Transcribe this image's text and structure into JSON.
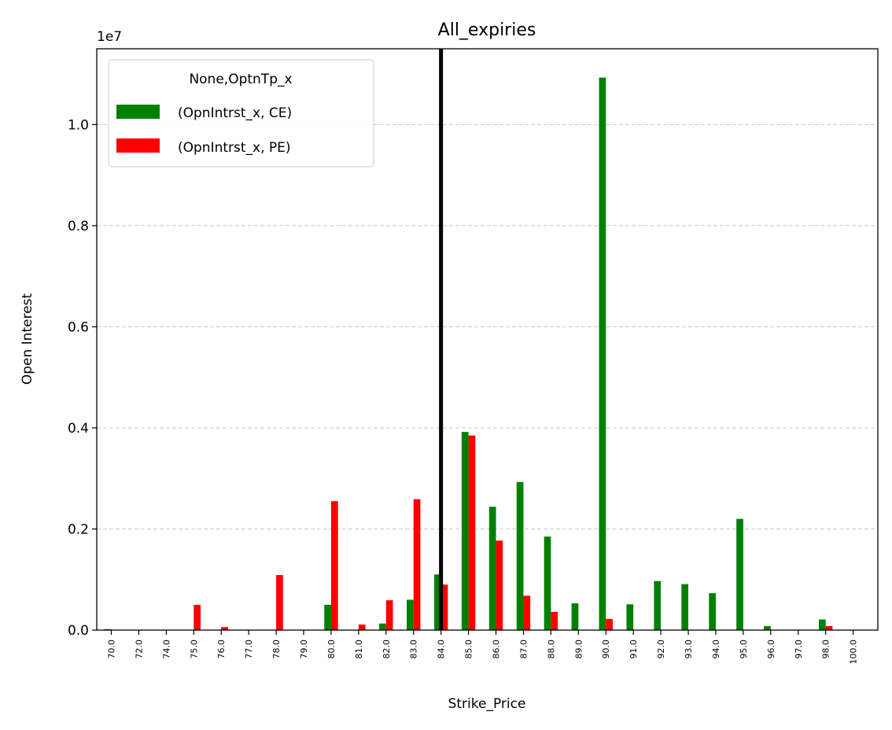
{
  "chart_data": {
    "type": "bar",
    "title": "All_expiries",
    "xlabel": "Strike_Price",
    "ylabel": "Open Interest",
    "y_offset_label": "1e7",
    "ylim": [
      0,
      11500000
    ],
    "yticks": [
      0,
      2000000,
      4000000,
      6000000,
      8000000,
      10000000
    ],
    "ytick_labels": [
      "0.0",
      "0.2",
      "0.4",
      "0.6",
      "0.8",
      "1.0"
    ],
    "grid": "y, dashed",
    "legend_title": "None,OptnTp_x",
    "legend_position": "top-left",
    "categories": [
      "70.0",
      "72.0",
      "74.0",
      "75.0",
      "76.0",
      "77.0",
      "78.0",
      "79.0",
      "80.0",
      "81.0",
      "82.0",
      "83.0",
      "84.0",
      "85.0",
      "86.0",
      "87.0",
      "88.0",
      "89.0",
      "90.0",
      "91.0",
      "92.0",
      "93.0",
      "94.0",
      "95.0",
      "96.0",
      "97.0",
      "98.0",
      "100.0"
    ],
    "series": [
      {
        "name": "(OpnIntrst_x, CE)",
        "color": "#008000",
        "values": [
          20000,
          0,
          0,
          0,
          0,
          0,
          0,
          0,
          500000,
          0,
          130000,
          600000,
          1100000,
          3920000,
          2440000,
          2930000,
          1850000,
          530000,
          10930000,
          510000,
          970000,
          910000,
          730000,
          2200000,
          80000,
          0,
          210000,
          0
        ]
      },
      {
        "name": "(OpnIntrst_x, PE)",
        "color": "#ff0000",
        "values": [
          0,
          0,
          0,
          500000,
          60000,
          0,
          1090000,
          0,
          2550000,
          110000,
          590000,
          2590000,
          900000,
          3850000,
          1770000,
          680000,
          360000,
          0,
          220000,
          0,
          0,
          0,
          0,
          0,
          0,
          0,
          80000,
          0
        ]
      }
    ],
    "vline_category": "84.0",
    "vline_color": "#000000"
  }
}
